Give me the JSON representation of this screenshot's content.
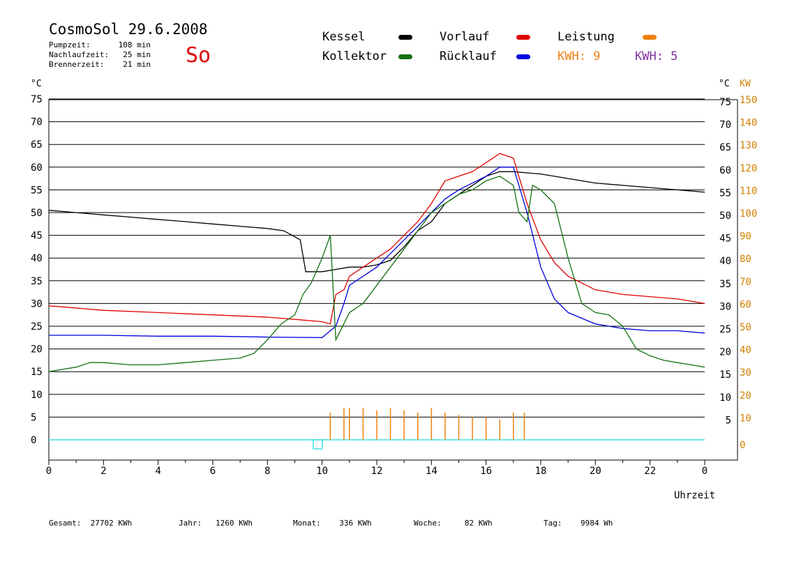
{
  "header": {
    "title": "CosmoSol 29.6.2008",
    "day": "So",
    "info": [
      {
        "label": "Pumpzeit:",
        "value": "108 min"
      },
      {
        "label": "Nachlaufzeit:",
        "value": "25 min"
      },
      {
        "label": "Brennerzeit:",
        "value": "21 min"
      }
    ]
  },
  "legend": {
    "kessel": "Kessel",
    "vorlauf": "Vorlauf",
    "leistung": "Leistung",
    "kollektor": "Kollektor",
    "ruecklauf": "Rücklauf",
    "kwh_orange": "KWH: 9",
    "kwh_purple": "KWH: 5"
  },
  "colors": {
    "kessel": "#000000",
    "vorlauf": "#e00000",
    "leistung": "#f08010",
    "kollektor": "#107010",
    "ruecklauf": "#0000e0",
    "kwh_purple": "#8030a0",
    "baseline": "#40e0e0",
    "axis_right": "#d08000"
  },
  "footer": {
    "gesamt": "Gesamt:  27702 KWh",
    "jahr": "Jahr:   1260 KWh",
    "monat": "Monat:    336 KWh",
    "woche": "Woche:     82 KWh",
    "tag": "Tag:    9984 Wh"
  },
  "chart_data": {
    "type": "line",
    "xlabel": "Uhrzeit",
    "ylabel_left": "°C",
    "ylabel_right": "°C",
    "ylabel_right2": "KW",
    "xlim": [
      0,
      24
    ],
    "ylim": [
      -5,
      80
    ],
    "x_ticks": [
      "0",
      "2",
      "4",
      "6",
      "8",
      "10",
      "12",
      "14",
      "16",
      "18",
      "20",
      "22",
      "0"
    ],
    "y_ticks_left": [
      "75",
      "70",
      "65",
      "60",
      "55",
      "50",
      "45",
      "40",
      "35",
      "30",
      "25",
      "20",
      "15",
      "10",
      "5",
      "0"
    ],
    "y_ticks_right": [
      "75",
      "70",
      "65",
      "60",
      "55",
      "50",
      "45",
      "40",
      "35",
      "30",
      "25",
      "20",
      "15",
      "10",
      "5"
    ],
    "y_ticks_kw": [
      "150",
      "140",
      "130",
      "120",
      "110",
      "100",
      "90",
      "80",
      "70",
      "60",
      "50",
      "40",
      "30",
      "20",
      "10",
      "0"
    ],
    "legend_position": "top",
    "series": [
      {
        "name": "Kessel",
        "x": [
          0,
          1,
          2,
          3,
          4,
          5,
          6,
          7,
          8,
          8.6,
          8.9,
          9.2,
          9.4,
          10,
          10.5,
          11,
          11.5,
          12,
          12.5,
          13,
          13.5,
          14,
          14.5,
          15,
          15.5,
          16,
          16.5,
          17,
          18,
          19,
          20,
          21,
          22,
          23,
          24
        ],
        "y": [
          50.5,
          50,
          49.5,
          49,
          48.5,
          48,
          47.5,
          47,
          46.5,
          46,
          45,
          44,
          37,
          37,
          37.5,
          38,
          38,
          38.5,
          39.5,
          42.5,
          46,
          48,
          52,
          54,
          56,
          58,
          59,
          59,
          58.5,
          57.5,
          56.5,
          56,
          55.5,
          55,
          54.5
        ]
      },
      {
        "name": "Vorlauf",
        "x": [
          0,
          2,
          4,
          6,
          8,
          9,
          10,
          10.3,
          10.5,
          10.8,
          11,
          11.5,
          12,
          12.5,
          13,
          13.5,
          14,
          14.5,
          15,
          15.5,
          16,
          16.5,
          17,
          17.5,
          18,
          18.5,
          19,
          20,
          21,
          22,
          23,
          24
        ],
        "y": [
          29.5,
          28.5,
          28,
          27.5,
          27,
          26.5,
          26,
          25.5,
          32,
          33,
          36,
          38,
          40,
          42,
          45,
          48,
          52,
          57,
          58,
          59,
          61,
          63,
          62,
          52,
          44,
          39,
          36,
          33,
          32,
          31.5,
          31,
          30
        ]
      },
      {
        "name": "Rücklauf",
        "x": [
          0,
          2,
          4,
          6,
          8,
          10,
          10.3,
          10.5,
          10.8,
          11,
          11.5,
          12,
          12.5,
          13,
          13.5,
          14,
          14.5,
          15,
          15.5,
          16,
          16.5,
          17,
          17.5,
          18,
          18.5,
          19,
          20,
          21,
          22,
          23,
          24
        ],
        "y": [
          23,
          23,
          22.8,
          22.8,
          22.6,
          22.5,
          24,
          25,
          30,
          34,
          36,
          38,
          41,
          44,
          47,
          50,
          53,
          55,
          56.5,
          58,
          60,
          60,
          50,
          38,
          31,
          28,
          25.5,
          24.5,
          24,
          24,
          23.5
        ]
      },
      {
        "name": "Kollektor",
        "x": [
          0,
          0.5,
          1,
          1.5,
          2,
          3,
          4,
          5,
          6,
          7,
          7.5,
          8,
          8.5,
          9,
          9.3,
          9.6,
          10,
          10.3,
          10.5,
          11,
          11.5,
          12,
          12.5,
          13,
          13.5,
          14,
          14.5,
          15,
          15.5,
          16,
          16.5,
          17,
          17.2,
          17.5,
          17.7,
          18,
          18.5,
          19,
          19.5,
          20,
          20.5,
          21,
          21.5,
          22,
          22.5,
          23,
          23.5,
          24
        ],
        "y": [
          15,
          15.5,
          16,
          17,
          17,
          16.5,
          16.5,
          17,
          17.5,
          18,
          19,
          22,
          25.5,
          27.5,
          32,
          34.5,
          40,
          45,
          22,
          28,
          30,
          34,
          38,
          42,
          46,
          50,
          52,
          54,
          55,
          57,
          58,
          56,
          50,
          48,
          56,
          55,
          52,
          40,
          30,
          28,
          27.5,
          25,
          20,
          18.5,
          17.5,
          17,
          16.5,
          16
        ]
      },
      {
        "name": "Leistung",
        "x": [
          10.3,
          10.8,
          11,
          11.5,
          12,
          12.5,
          13,
          13.5,
          14,
          14.5,
          15,
          15.5,
          16,
          16.5,
          17,
          17.4
        ],
        "y": [
          6,
          7,
          7,
          7,
          6.5,
          7,
          6.5,
          6,
          7,
          6,
          5.5,
          5,
          5,
          4.5,
          6,
          6
        ]
      }
    ]
  }
}
